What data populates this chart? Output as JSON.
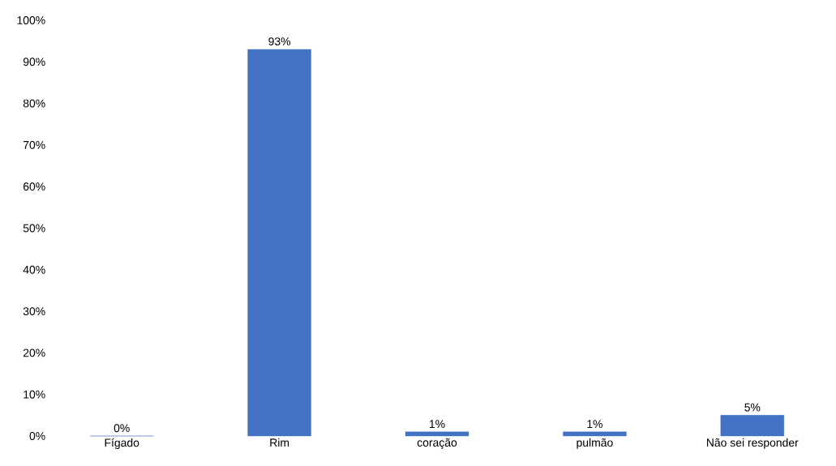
{
  "chart_data": {
    "type": "bar",
    "categories": [
      "Fígado",
      "Rim",
      "coração",
      "pulmão",
      "Não sei responder"
    ],
    "values": [
      0,
      93,
      1,
      1,
      5
    ],
    "value_labels": [
      "0%",
      "93%",
      "1%",
      "1%",
      "5%"
    ],
    "color": "#4472c4",
    "ylim": [
      0,
      100
    ],
    "yticks": [
      {
        "value": 0,
        "label": "0%"
      },
      {
        "value": 10,
        "label": "10%"
      },
      {
        "value": 20,
        "label": "20%"
      },
      {
        "value": 30,
        "label": "30%"
      },
      {
        "value": 40,
        "label": "40%"
      },
      {
        "value": 50,
        "label": "50%"
      },
      {
        "value": 60,
        "label": "60%"
      },
      {
        "value": 70,
        "label": "70%"
      },
      {
        "value": 80,
        "label": "80%"
      },
      {
        "value": 90,
        "label": "90%"
      },
      {
        "value": 100,
        "label": "100%"
      }
    ],
    "grid": false
  }
}
